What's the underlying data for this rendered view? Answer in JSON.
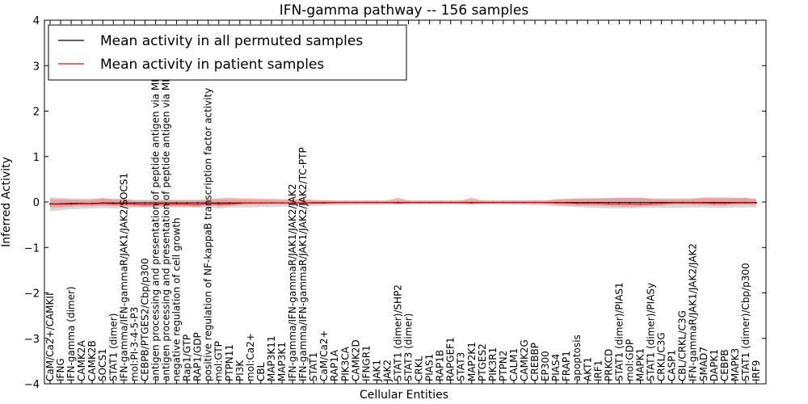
{
  "chart_data": {
    "type": "line",
    "title": "IFN-gamma pathway -- 156 samples",
    "xlabel": "Cellular Entities",
    "ylabel": "Inferred Activity",
    "ylim": [
      -4,
      4
    ],
    "yticks": [
      -4,
      -3,
      -2,
      -1,
      0,
      1,
      2,
      3,
      4
    ],
    "grid": false,
    "legend_position": "top-left",
    "categories": [
      "CaM/Ca2+/CAMKII",
      "IFNG",
      "IFN-gamma (dimer)",
      "CAMK2A",
      "CAMK2B",
      "SOCS1",
      "STAT1 (dimer)",
      "IFN-gamma/IFN-gammaR/JAK1/JAK2/SOCS1",
      "mol:PI-3-4-5-P3",
      "CEBPB/PTGES2/Cbp/p300",
      "antigen processing and presentation of peptide antigen via MHC class I",
      "antigen processing and presentation of peptide antigen via MHC class II",
      "negative regulation of cell growth",
      "Rap1/GTP",
      "RAP1/GDP",
      "positive regulation of NF-kappaB transcription factor activity",
      "mol:GTP",
      "PTPN11",
      "PI3K",
      "mol:Ca2+",
      "CBL",
      "MAP3K11",
      "MAP3K1",
      "IFN-gamma/IFN-gammaR/JAK1/JAK2/JAK2",
      "IFN-gamma/IFN-gammaR/JAK1/JAK2/JAK2/TC-PTP",
      "STAT1",
      "CaM/Ca2+",
      "RAP1A",
      "PIK3CA",
      "CAMK2D",
      "IFNGR1",
      "JAK1",
      "JAK2",
      "STAT1 (dimer)/SHP2",
      "STAT3 (dimer)",
      "CRKL",
      "PIAS1",
      "RAP1B",
      "RAPGEF1",
      "STAT3",
      "MAP2K1",
      "PTGES2",
      "PIK3R1",
      "PTPN2",
      "CALM1",
      "CAMK2G",
      "CREBBP",
      "EP300",
      "PIAS4",
      "FRAP1",
      "apoptosis",
      "AKT1",
      "IRF1",
      "PRKCD",
      "STAT1 (dimer)/PIAS1",
      "mol:GDP",
      "MAPK1",
      "STAT1 (dimer)/PIASy",
      "CRKL/C3G",
      "CASP1",
      "CBL/CRKL/C3G",
      "IFN-gammaR/JAK1/JAK2/JAK2",
      "SMAD7",
      "DAPK1",
      "CEBPB",
      "MAPK3",
      "STAT1 (dimer)/Cbp/p300",
      "IRF9"
    ],
    "series": [
      {
        "name": "Mean activity in all permuted samples",
        "color": "#000000",
        "band_color": "#c8c8c8",
        "values": [
          -0.04,
          -0.04,
          -0.03,
          -0.03,
          -0.03,
          -0.02,
          -0.02,
          -0.02,
          -0.02,
          -0.02,
          -0.02,
          -0.02,
          -0.02,
          -0.02,
          -0.02,
          -0.02,
          -0.02,
          -0.02,
          -0.02,
          -0.02,
          -0.02,
          -0.02,
          -0.02,
          -0.02,
          -0.02,
          -0.02,
          -0.02,
          -0.01,
          -0.01,
          -0.01,
          -0.01,
          -0.01,
          -0.01,
          -0.01,
          -0.01,
          -0.01,
          -0.01,
          -0.01,
          -0.01,
          -0.01,
          -0.01,
          -0.01,
          -0.01,
          -0.01,
          -0.01,
          -0.01,
          -0.01,
          -0.01,
          -0.01,
          -0.01,
          -0.01,
          -0.01,
          -0.01,
          -0.01,
          -0.01,
          -0.01,
          -0.01,
          -0.01,
          -0.01,
          -0.01,
          -0.01,
          -0.01,
          -0.01,
          -0.01,
          -0.01,
          -0.01,
          -0.01,
          -0.01
        ],
        "lower": [
          -0.2,
          -0.18,
          -0.16,
          -0.15,
          -0.14,
          -0.13,
          -0.14,
          -0.13,
          -0.12,
          -0.12,
          -0.12,
          -0.12,
          -0.12,
          -0.12,
          -0.12,
          -0.12,
          -0.14,
          -0.12,
          -0.12,
          -0.12,
          -0.11,
          -0.11,
          -0.1,
          -0.1,
          -0.1,
          -0.09,
          -0.08,
          -0.07,
          -0.07,
          -0.06,
          -0.06,
          -0.06,
          -0.05,
          -0.05,
          -0.05,
          -0.05,
          -0.05,
          -0.05,
          -0.05,
          -0.05,
          -0.05,
          -0.05,
          -0.05,
          -0.05,
          -0.06,
          -0.06,
          -0.07,
          -0.08,
          -0.09,
          -0.1,
          -0.11,
          -0.12,
          -0.13,
          -0.14,
          -0.14,
          -0.14,
          -0.13,
          -0.13,
          -0.13,
          -0.13,
          -0.13,
          -0.12,
          -0.12,
          -0.13,
          -0.13,
          -0.12,
          -0.12,
          -0.12
        ],
        "upper": [
          0.1,
          0.09,
          0.08,
          0.08,
          0.08,
          0.07,
          0.07,
          0.06,
          0.05,
          0.05,
          0.05,
          0.05,
          0.05,
          0.05,
          0.05,
          0.05,
          0.05,
          0.05,
          0.05,
          0.04,
          0.04,
          0.04,
          0.04,
          0.04,
          0.04,
          0.03,
          0.03,
          0.03,
          0.03,
          0.03,
          0.03,
          0.03,
          0.03,
          0.03,
          0.03,
          0.03,
          0.03,
          0.03,
          0.03,
          0.03,
          0.03,
          0.03,
          0.03,
          0.03,
          0.04,
          0.04,
          0.04,
          0.04,
          0.05,
          0.06,
          0.07,
          0.08,
          0.08,
          0.09,
          0.09,
          0.09,
          0.09,
          0.08,
          0.08,
          0.08,
          0.08,
          0.08,
          0.08,
          0.08,
          0.08,
          0.08,
          0.08,
          0.08
        ]
      },
      {
        "name": "Mean activity in patient samples",
        "color": "#ff0000",
        "band_color": "#f08080",
        "values": [
          -0.05,
          -0.05,
          -0.05,
          -0.04,
          -0.04,
          -0.03,
          -0.04,
          -0.04,
          -0.05,
          -0.06,
          -0.05,
          -0.05,
          -0.05,
          -0.05,
          -0.06,
          -0.03,
          -0.05,
          -0.04,
          -0.03,
          -0.02,
          -0.02,
          -0.02,
          -0.02,
          -0.02,
          -0.02,
          -0.01,
          -0.01,
          -0.01,
          -0.01,
          -0.01,
          -0.01,
          -0.01,
          -0.01,
          -0.02,
          -0.01,
          -0.01,
          -0.01,
          -0.01,
          -0.01,
          -0.01,
          -0.02,
          -0.01,
          -0.01,
          -0.01,
          -0.01,
          -0.01,
          -0.01,
          -0.01,
          -0.02,
          -0.02,
          -0.03,
          -0.03,
          -0.03,
          -0.04,
          -0.04,
          -0.04,
          -0.05,
          -0.04,
          -0.03,
          -0.02,
          -0.02,
          -0.02,
          -0.02,
          -0.03,
          -0.03,
          -0.02,
          -0.02,
          -0.02
        ],
        "lower": [
          -0.12,
          -0.12,
          -0.1,
          -0.09,
          -0.09,
          -0.08,
          -0.09,
          -0.09,
          -0.1,
          -0.11,
          -0.1,
          -0.1,
          -0.1,
          -0.1,
          -0.11,
          -0.08,
          -0.1,
          -0.09,
          -0.07,
          -0.06,
          -0.06,
          -0.05,
          -0.05,
          -0.05,
          -0.05,
          -0.04,
          -0.04,
          -0.04,
          -0.04,
          -0.04,
          -0.04,
          -0.04,
          -0.04,
          -0.05,
          -0.04,
          -0.04,
          -0.04,
          -0.04,
          -0.04,
          -0.04,
          -0.05,
          -0.04,
          -0.04,
          -0.04,
          -0.04,
          -0.04,
          -0.04,
          -0.04,
          -0.06,
          -0.07,
          -0.08,
          -0.08,
          -0.08,
          -0.09,
          -0.1,
          -0.1,
          -0.1,
          -0.09,
          -0.08,
          -0.06,
          -0.06,
          -0.06,
          -0.07,
          -0.08,
          -0.08,
          -0.06,
          -0.06,
          -0.06
        ],
        "upper": [
          0.06,
          0.06,
          0.05,
          0.05,
          0.05,
          0.09,
          0.06,
          0.07,
          0.03,
          0.03,
          0.03,
          0.04,
          0.04,
          0.04,
          0.04,
          0.06,
          0.08,
          0.09,
          0.08,
          0.08,
          0.07,
          0.07,
          0.06,
          0.06,
          0.06,
          0.05,
          0.04,
          0.03,
          0.03,
          0.03,
          0.03,
          0.03,
          0.03,
          0.09,
          0.03,
          0.03,
          0.03,
          0.03,
          0.03,
          0.03,
          0.09,
          0.03,
          0.03,
          0.03,
          0.03,
          0.03,
          0.03,
          0.03,
          0.06,
          0.07,
          0.08,
          0.08,
          0.08,
          0.08,
          0.09,
          0.09,
          0.09,
          0.07,
          0.06,
          0.06,
          0.06,
          0.07,
          0.1,
          0.1,
          0.1,
          0.09,
          0.09,
          0.06
        ]
      }
    ]
  }
}
